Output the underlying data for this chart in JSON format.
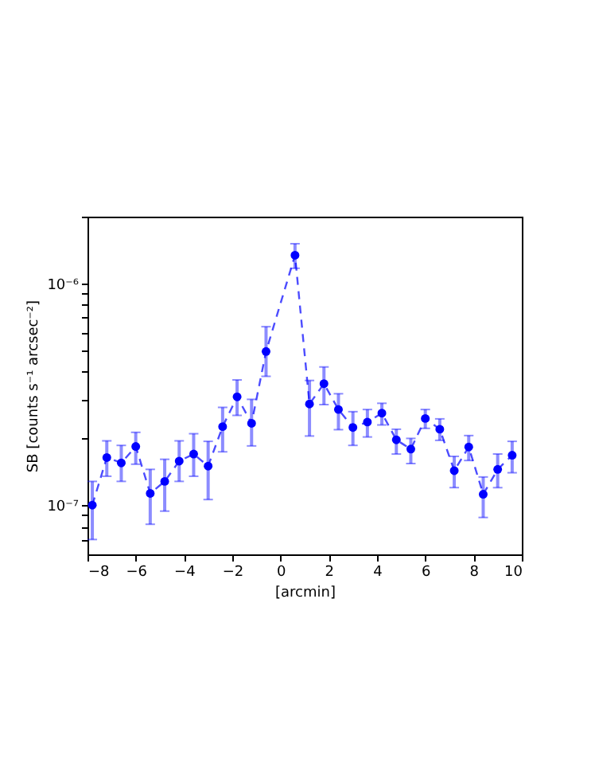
{
  "chart_data": {
    "type": "line",
    "xlabel": "[arcmin]",
    "ylabel": "SB [counts s⁻¹ arcsec⁻²]",
    "x": [
      -7.8,
      -7.2,
      -6.6,
      -6.0,
      -5.4,
      -4.8,
      -4.2,
      -3.6,
      -3.0,
      -2.4,
      -1.8,
      -1.2,
      -0.6,
      0.6,
      1.2,
      1.8,
      2.4,
      3.0,
      3.6,
      4.2,
      4.8,
      5.4,
      6.0,
      6.6,
      7.2,
      7.8,
      8.4,
      9.0,
      9.6
    ],
    "series": [
      {
        "color": "#0000ff",
        "values": [
          1e-07,
          1.64e-07,
          1.55e-07,
          1.84e-07,
          1.13e-07,
          1.28e-07,
          1.58e-07,
          1.7e-07,
          1.5e-07,
          2.26e-07,
          3.08e-07,
          2.34e-07,
          4.93e-07,
          1.34e-06,
          2.86e-07,
          3.53e-07,
          2.7e-07,
          2.24e-07,
          2.37e-07,
          2.6e-07,
          1.97e-07,
          1.79e-07,
          2.46e-07,
          2.2e-07,
          1.43e-07,
          1.83e-07,
          1.12e-07,
          1.45e-07,
          1.68e-07
        ],
        "errors": [
          [
            7e-08,
            1.28e-07
          ],
          [
            1.35e-07,
            1.95e-07
          ],
          [
            1.28e-07,
            1.86e-07
          ],
          [
            1.53e-07,
            2.13e-07
          ],
          [
            8.2e-08,
            1.45e-07
          ],
          [
            9.4e-08,
            1.61e-07
          ],
          [
            1.28e-07,
            1.95e-07
          ],
          [
            1.35e-07,
            2.1e-07
          ],
          [
            1.06e-07,
            1.94e-07
          ],
          [
            1.74e-07,
            2.76e-07
          ],
          [
            2.54e-07,
            3.67e-07
          ],
          [
            1.85e-07,
            3e-07
          ],
          [
            3.81e-07,
            6.38e-07
          ],
          [
            1.17e-06,
            1.51e-06
          ],
          [
            2.05e-07,
            3.65e-07
          ],
          [
            2.84e-07,
            4.2e-07
          ],
          [
            2.19e-07,
            3.18e-07
          ],
          [
            1.86e-07,
            2.64e-07
          ],
          [
            2.03e-07,
            2.7e-07
          ],
          [
            2.3e-07,
            2.88e-07
          ],
          [
            1.7e-07,
            2.2e-07
          ],
          [
            1.54e-07,
            2e-07
          ],
          [
            2.22e-07,
            2.7e-07
          ],
          [
            1.96e-07,
            2.45e-07
          ],
          [
            1.2e-07,
            1.66e-07
          ],
          [
            1.59e-07,
            2.06e-07
          ],
          [
            8.8e-08,
            1.34e-07
          ],
          [
            1.2e-07,
            1.7e-07
          ],
          [
            1.4e-07,
            1.94e-07
          ]
        ]
      }
    ],
    "xlim": [
      -8,
      10
    ],
    "xticks": [
      -8,
      -6,
      -4,
      -2,
      0,
      2,
      4,
      6,
      8,
      10
    ],
    "ylim": [
      6e-08,
      2e-06
    ],
    "log": "y",
    "yticks": [
      {
        "value": 7e-08,
        "label": null
      },
      {
        "value": 8e-08,
        "label": null
      },
      {
        "value": 9e-08,
        "label": null
      },
      {
        "value": 1e-07,
        "label": "10⁻⁷"
      },
      {
        "value": 2e-07,
        "label": null
      },
      {
        "value": 3e-07,
        "label": null
      },
      {
        "value": 4e-07,
        "label": null
      },
      {
        "value": 5e-07,
        "label": null
      },
      {
        "value": 6e-07,
        "label": null
      },
      {
        "value": 7e-07,
        "label": null
      },
      {
        "value": 8e-07,
        "label": null
      },
      {
        "value": 9e-07,
        "label": null
      },
      {
        "value": 1e-06,
        "label": "10⁻⁶"
      },
      {
        "value": 2e-06,
        "label": null
      }
    ],
    "grid": false,
    "marker": "circle",
    "line_style": "dashed"
  }
}
